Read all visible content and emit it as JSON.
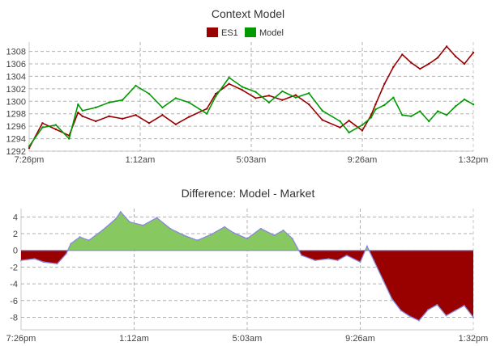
{
  "chart_data": [
    {
      "type": "line",
      "title": "Context Model",
      "legend": "top-center",
      "grid": true,
      "xlim": [
        "7:26pm",
        "1:32pm"
      ],
      "x_ticks": [
        "7:26pm",
        "1:12am",
        "5:03am",
        "9:26am",
        "1:32pm"
      ],
      "y_ticks": [
        1292,
        1294,
        1296,
        1298,
        1300,
        1302,
        1304,
        1306,
        1308
      ],
      "ylim": [
        1292,
        1309.5
      ],
      "x_fraction_of_range": [
        0,
        0.03,
        0.06,
        0.09,
        0.11,
        0.12,
        0.15,
        0.18,
        0.21,
        0.24,
        0.27,
        0.3,
        0.33,
        0.36,
        0.4,
        0.42,
        0.45,
        0.48,
        0.51,
        0.54,
        0.57,
        0.6,
        0.63,
        0.66,
        0.7,
        0.72,
        0.75,
        0.77,
        0.78,
        0.8,
        0.82,
        0.84,
        0.86,
        0.88,
        0.9,
        0.92,
        0.94,
        0.96,
        0.98,
        1.0
      ],
      "series": [
        {
          "name": "ES1",
          "color": "#990000",
          "values": [
            1292.5,
            1296.5,
            1295.5,
            1294.5,
            1298.2,
            1297.6,
            1296.8,
            1297.6,
            1297.2,
            1297.8,
            1296.5,
            1297.8,
            1296.3,
            1297.5,
            1298.8,
            1301.2,
            1302.8,
            1301.8,
            1300.5,
            1300.9,
            1300.2,
            1301.0,
            1299.5,
            1297.0,
            1295.8,
            1296.9,
            1295.3,
            1297.8,
            1299.5,
            1302.8,
            1305.5,
            1307.5,
            1306.2,
            1305.2,
            1306.0,
            1307.0,
            1308.8,
            1307.2,
            1306.0,
            1307.8
          ]
        },
        {
          "name": "Model",
          "color": "#009900",
          "values": [
            1292.8,
            1295.8,
            1296.2,
            1294.0,
            1299.5,
            1298.5,
            1299.0,
            1299.8,
            1300.2,
            1302.5,
            1301.2,
            1299.0,
            1300.5,
            1299.8,
            1298.0,
            1300.8,
            1303.8,
            1302.3,
            1301.5,
            1299.8,
            1301.6,
            1300.6,
            1301.3,
            1298.5,
            1296.8,
            1295.0,
            1296.2,
            1297.4,
            1298.7,
            1299.4,
            1300.6,
            1297.8,
            1297.6,
            1298.4,
            1296.8,
            1298.4,
            1297.8,
            1299.2,
            1300.3,
            1299.5
          ]
        }
      ]
    },
    {
      "type": "area",
      "title": "Difference: Model - Market",
      "grid": true,
      "xlim": [
        "7:26pm",
        "1:32pm"
      ],
      "x_ticks": [
        "7:26pm",
        "1:12am",
        "5:03am",
        "9:26am",
        "1:32pm"
      ],
      "y_ticks": [
        4,
        2,
        0,
        -2,
        -4,
        -6,
        -8
      ],
      "ylim": [
        -9.5,
        5
      ],
      "positive_color": "#88c860",
      "negative_color": "#990000",
      "outline_color": "#8888dd",
      "x_fraction_of_range": [
        0,
        0.03,
        0.05,
        0.08,
        0.1,
        0.11,
        0.13,
        0.15,
        0.18,
        0.21,
        0.22,
        0.24,
        0.27,
        0.3,
        0.33,
        0.36,
        0.39,
        0.42,
        0.45,
        0.47,
        0.5,
        0.53,
        0.56,
        0.58,
        0.6,
        0.62,
        0.65,
        0.68,
        0.7,
        0.72,
        0.75,
        0.765,
        0.78,
        0.8,
        0.82,
        0.84,
        0.86,
        0.88,
        0.9,
        0.92,
        0.94,
        0.96,
        0.98,
        1.0
      ],
      "values": [
        -1.2,
        -1.0,
        -1.4,
        -1.6,
        -0.4,
        0.8,
        1.6,
        1.2,
        2.4,
        3.8,
        4.6,
        3.4,
        3.0,
        3.9,
        2.6,
        1.8,
        1.2,
        1.9,
        2.8,
        2.1,
        1.4,
        2.6,
        1.8,
        2.4,
        1.4,
        -0.6,
        -1.2,
        -1.0,
        -1.2,
        -0.6,
        -1.4,
        0.5,
        -1.2,
        -3.5,
        -5.8,
        -7.2,
        -7.9,
        -8.4,
        -7.1,
        -6.5,
        -7.8,
        -7.2,
        -6.6,
        -8.0
      ]
    }
  ]
}
